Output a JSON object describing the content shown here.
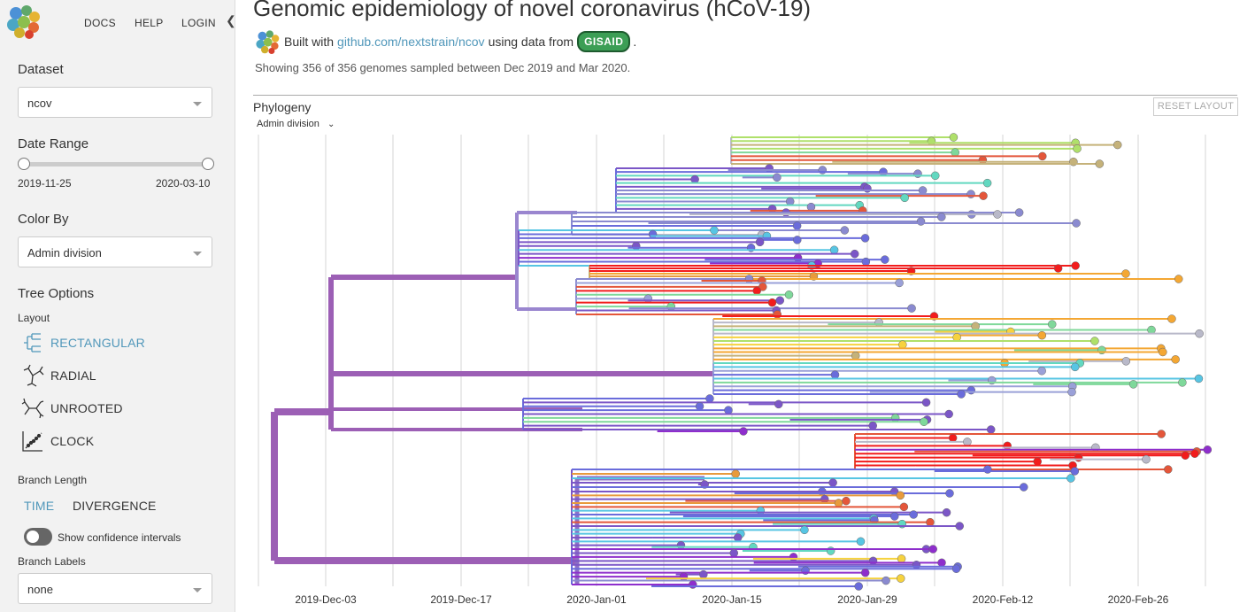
{
  "nav": {
    "docs": "DOCS",
    "help": "HELP",
    "login": "LOGIN"
  },
  "sidebar": {
    "dataset_title": "Dataset",
    "dataset_value": "ncov",
    "date_range_title": "Date Range",
    "date_start": "2019-11-25",
    "date_end": "2020-03-10",
    "color_by_title": "Color By",
    "color_by_value": "Admin division",
    "tree_options_title": "Tree Options",
    "layout_label": "Layout",
    "layouts": [
      "RECTANGULAR",
      "RADIAL",
      "UNROOTED",
      "CLOCK"
    ],
    "selected_layout": "RECTANGULAR",
    "branch_length_label": "Branch Length",
    "branch_length_time": "TIME",
    "branch_length_divergence": "DIVERGENCE",
    "confidence_label": "Show confidence intervals",
    "branch_labels_title": "Branch Labels",
    "branch_labels_value": "none"
  },
  "header": {
    "title": "Genomic epidemiology of novel coronavirus (hCoV-19)",
    "built_with": "Built with",
    "repo_link": "github.com/nextstrain/ncov",
    "using_data": "using data from",
    "gisaid": "GISAID",
    "period": ".",
    "showing": "Showing 356 of 356 genomes sampled between Dec 2019 and Mar 2020."
  },
  "phylogeny": {
    "title": "Phylogeny",
    "reset_label": "RESET LAYOUT",
    "color_by_dropdown": "Admin division",
    "x_ticks": [
      "2019-Dec-03",
      "2019-Dec-17",
      "2020-Jan-01",
      "2020-Jan-15",
      "2020-Jan-29",
      "2020-Feb-12",
      "2020-Feb-26"
    ]
  },
  "colors": {
    "accent": "#5097BA",
    "root_branch": "#9C5FB5",
    "palette": [
      "#7B56C7",
      "#6A6CDB",
      "#8A8AD0",
      "#9AA0D8",
      "#B9B9C9",
      "#C5B27A",
      "#E89A3C",
      "#F4A733",
      "#F6D23F",
      "#AFE06A",
      "#7FD89A",
      "#62D8C0",
      "#57C5E3",
      "#E4563A",
      "#F21C1C",
      "#8E2ECC"
    ]
  }
}
